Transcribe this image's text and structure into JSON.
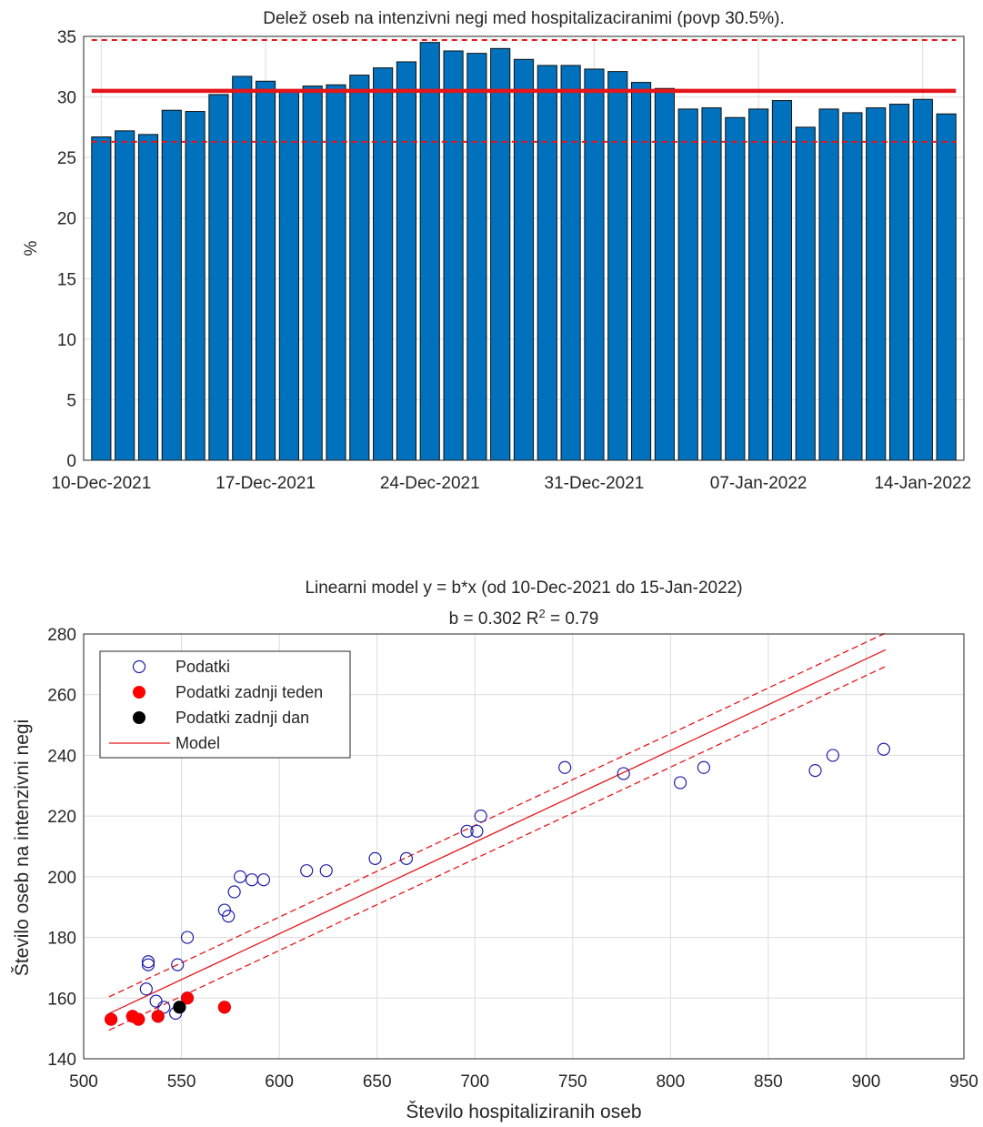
{
  "chart_data": [
    {
      "type": "bar",
      "title": "Delež oseb na intenzivni negi med hospitalizaciranimi (povp 30.5%).",
      "ylabel": "%",
      "ylim": [
        0,
        35
      ],
      "yticks": [
        0,
        5,
        10,
        15,
        20,
        25,
        30,
        35
      ],
      "xtick_labels": [
        "10-Dec-2021",
        "17-Dec-2021",
        "24-Dec-2021",
        "31-Dec-2021",
        "07-Jan-2022",
        "14-Jan-2022"
      ],
      "xtick_index": [
        0,
        7,
        14,
        21,
        28,
        35
      ],
      "categories": [
        "10-Dec-2021",
        "11-Dec-2021",
        "12-Dec-2021",
        "13-Dec-2021",
        "14-Dec-2021",
        "15-Dec-2021",
        "16-Dec-2021",
        "17-Dec-2021",
        "18-Dec-2021",
        "19-Dec-2021",
        "20-Dec-2021",
        "21-Dec-2021",
        "22-Dec-2021",
        "23-Dec-2021",
        "24-Dec-2021",
        "25-Dec-2021",
        "26-Dec-2021",
        "27-Dec-2021",
        "28-Dec-2021",
        "29-Dec-2021",
        "30-Dec-2021",
        "31-Dec-2021",
        "01-Jan-2022",
        "02-Jan-2022",
        "03-Jan-2022",
        "04-Jan-2022",
        "05-Jan-2022",
        "06-Jan-2022",
        "07-Jan-2022",
        "08-Jan-2022",
        "09-Jan-2022",
        "10-Jan-2022",
        "11-Jan-2022",
        "12-Jan-2022",
        "13-Jan-2022",
        "14-Jan-2022",
        "15-Jan-2022"
      ],
      "values": [
        26.7,
        27.2,
        26.9,
        28.9,
        28.8,
        30.2,
        31.7,
        31.3,
        30.6,
        30.9,
        31.0,
        31.8,
        32.4,
        32.9,
        34.5,
        33.8,
        33.6,
        34.0,
        33.1,
        32.6,
        32.6,
        32.3,
        32.1,
        31.2,
        30.7,
        29.0,
        29.1,
        28.3,
        29.0,
        29.7,
        27.5,
        29.0,
        28.7,
        29.1,
        29.4,
        29.8,
        28.6
      ],
      "bar_color": "#0072BD",
      "mean_line": 30.5,
      "band": [
        26.3,
        34.7
      ],
      "line_color": "#E4161A",
      "grid": true
    },
    {
      "type": "scatter",
      "title_line1": "Linearni model y = b*x (od 10-Dec-2021 do 15-Jan-2022)",
      "title_line2_prefix": "b = 0.302 R",
      "title_line2_sup": "2",
      "title_line2_suffix": " = 0.79",
      "xlabel": "Število hospitaliziranih oseb",
      "ylabel": "Število oseb na intenzivni negi",
      "xlim": [
        500,
        950
      ],
      "ylim": [
        140,
        280
      ],
      "xticks": [
        500,
        550,
        600,
        650,
        700,
        750,
        800,
        850,
        900,
        950
      ],
      "yticks": [
        140,
        160,
        180,
        200,
        220,
        240,
        260,
        280
      ],
      "grid": true,
      "model_b": 0.302,
      "model_x": [
        513,
        910
      ],
      "band_offset": 5.5,
      "legend": [
        {
          "label": "Podatki",
          "kind": "open-circle",
          "color": "#1F1FA8"
        },
        {
          "label": "Podatki zadnji teden",
          "kind": "filled-circle",
          "color": "#FF0000"
        },
        {
          "label": "Podatki zadnji dan",
          "kind": "filled-circle",
          "color": "#000000"
        },
        {
          "label": "Model",
          "kind": "line",
          "color": "#E4161A"
        }
      ],
      "series": [
        {
          "name": "Podatki",
          "points": [
            [
              532,
              163
            ],
            [
              533,
              172
            ],
            [
              533,
              171
            ],
            [
              537,
              159
            ],
            [
              541,
              157
            ],
            [
              547,
              155
            ],
            [
              548,
              171
            ],
            [
              553,
              180
            ],
            [
              572,
              189
            ],
            [
              574,
              187
            ],
            [
              577,
              195
            ],
            [
              580,
              200
            ],
            [
              586,
              199
            ],
            [
              592,
              199
            ],
            [
              614,
              202
            ],
            [
              624,
              202
            ],
            [
              649,
              206
            ],
            [
              665,
              206
            ],
            [
              696,
              215
            ],
            [
              701,
              215
            ],
            [
              703,
              220
            ],
            [
              746,
              236
            ],
            [
              776,
              234
            ],
            [
              805,
              231
            ],
            [
              817,
              236
            ],
            [
              874,
              235
            ],
            [
              883,
              240
            ],
            [
              909,
              242
            ],
            [
              514,
              153
            ],
            [
              525,
              154
            ],
            [
              528,
              153
            ],
            [
              538,
              154
            ],
            [
              549,
              157
            ],
            [
              553,
              160
            ],
            [
              572,
              157
            ]
          ]
        },
        {
          "name": "Podatki zadnji teden",
          "points": [
            [
              514,
              153
            ],
            [
              525,
              154
            ],
            [
              528,
              153
            ],
            [
              538,
              154
            ],
            [
              553,
              160
            ],
            [
              572,
              157
            ]
          ]
        },
        {
          "name": "Podatki zadnji dan",
          "points": [
            [
              549,
              157
            ]
          ]
        }
      ]
    }
  ]
}
